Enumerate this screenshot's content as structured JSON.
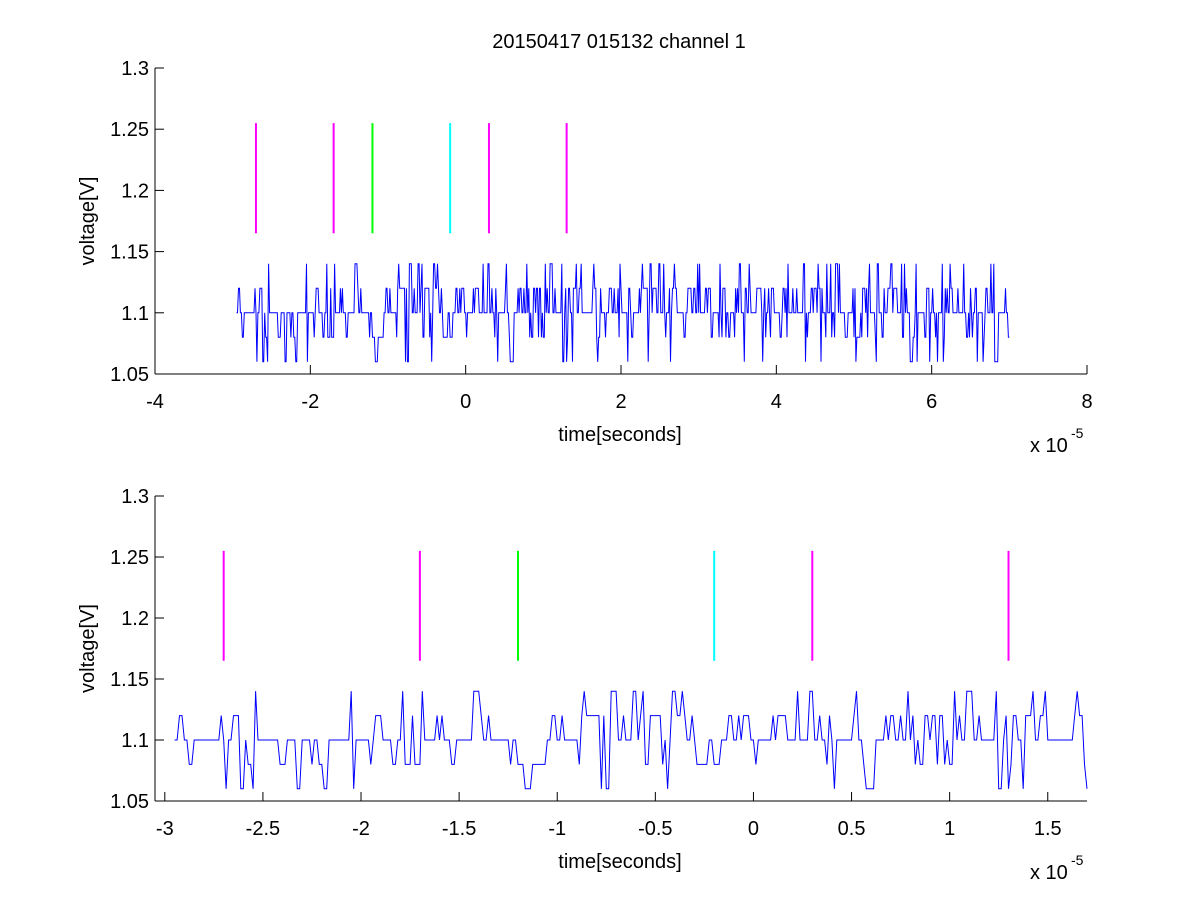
{
  "figure": {
    "title": "20150417 015132 channel 1"
  },
  "chart_data": [
    {
      "type": "line",
      "title": "20150417 015132 channel 1",
      "xlabel": "time[seconds]",
      "ylabel": "voltage[V]",
      "x_exponent_label": {
        "base": "x 10",
        "exponent": "-5"
      },
      "xlim": [
        -4,
        8
      ],
      "ylim": [
        1.05,
        1.3
      ],
      "x_ticks": [
        -4,
        -2,
        0,
        2,
        4,
        6,
        8
      ],
      "x_tick_labels": [
        "-4",
        "-2",
        "0",
        "2",
        "4",
        "6",
        "8"
      ],
      "y_ticks": [
        1.05,
        1.1,
        1.15,
        1.2,
        1.25,
        1.3
      ],
      "y_tick_labels": [
        "1.05",
        "1.1",
        "1.15",
        "1.2",
        "1.25",
        "1.3"
      ],
      "grid": false,
      "trace": {
        "color": "#0000ff",
        "x_range": [
          -2.95,
          7.0
        ],
        "levels": [
          1.06,
          1.08,
          1.1,
          1.12,
          1.14
        ],
        "baseline": 1.1
      },
      "markers": [
        {
          "x": -2.7,
          "y_range": [
            1.165,
            1.255
          ],
          "color": "#ff00ff"
        },
        {
          "x": -1.7,
          "y_range": [
            1.165,
            1.255
          ],
          "color": "#ff00ff"
        },
        {
          "x": -1.2,
          "y_range": [
            1.165,
            1.255
          ],
          "color": "#00ff00"
        },
        {
          "x": -0.2,
          "y_range": [
            1.165,
            1.255
          ],
          "color": "#00ffff"
        },
        {
          "x": 0.3,
          "y_range": [
            1.165,
            1.255
          ],
          "color": "#ff00ff"
        },
        {
          "x": 1.3,
          "y_range": [
            1.165,
            1.255
          ],
          "color": "#ff00ff"
        }
      ]
    },
    {
      "type": "line",
      "title": "",
      "xlabel": "time[seconds]",
      "ylabel": "voltage[V]",
      "x_exponent_label": {
        "base": "x 10",
        "exponent": "-5"
      },
      "xlim": [
        -3.05,
        1.7
      ],
      "ylim": [
        1.05,
        1.3
      ],
      "x_ticks": [
        -3,
        -2.5,
        -2,
        -1.5,
        -1,
        -0.5,
        0,
        0.5,
        1,
        1.5
      ],
      "x_tick_labels": [
        "-3",
        "-2.5",
        "-2",
        "-1.5",
        "-1",
        "-0.5",
        "0",
        "0.5",
        "1",
        "1.5"
      ],
      "y_ticks": [
        1.05,
        1.1,
        1.15,
        1.2,
        1.25,
        1.3
      ],
      "y_tick_labels": [
        "1.05",
        "1.1",
        "1.15",
        "1.2",
        "1.25",
        "1.3"
      ],
      "grid": false,
      "trace": {
        "color": "#0000ff",
        "x_range": [
          -2.95,
          1.7
        ],
        "levels": [
          1.06,
          1.08,
          1.1,
          1.12,
          1.14
        ],
        "baseline": 1.1
      },
      "markers": [
        {
          "x": -2.7,
          "y_range": [
            1.165,
            1.255
          ],
          "color": "#ff00ff"
        },
        {
          "x": -1.7,
          "y_range": [
            1.165,
            1.255
          ],
          "color": "#ff00ff"
        },
        {
          "x": -1.2,
          "y_range": [
            1.165,
            1.255
          ],
          "color": "#00ff00"
        },
        {
          "x": -0.2,
          "y_range": [
            1.165,
            1.255
          ],
          "color": "#00ffff"
        },
        {
          "x": 0.3,
          "y_range": [
            1.165,
            1.255
          ],
          "color": "#ff00ff"
        },
        {
          "x": 1.3,
          "y_range": [
            1.165,
            1.255
          ],
          "color": "#ff00ff"
        }
      ]
    }
  ]
}
